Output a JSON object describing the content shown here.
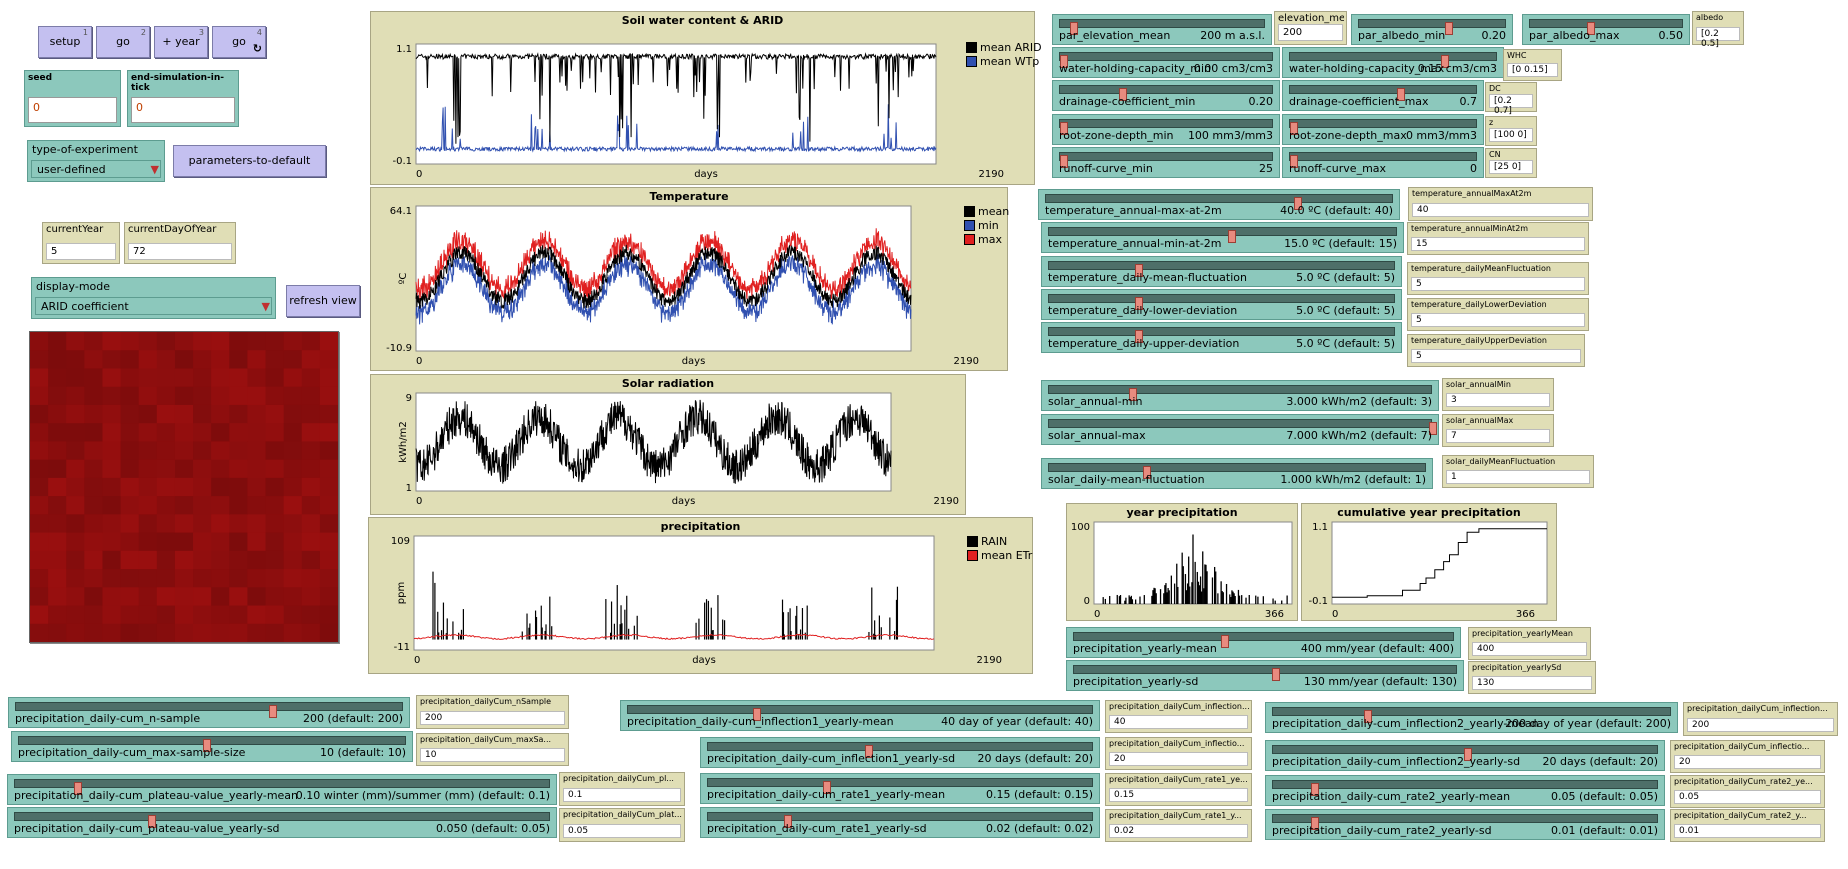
{
  "buttons": {
    "setup": {
      "label": "setup",
      "key": "1"
    },
    "go": {
      "label": "go",
      "key": "2"
    },
    "plus_year": {
      "label": "+ year",
      "key": "3"
    },
    "go_forever": {
      "label": "go",
      "key": "4"
    },
    "parameters_to_default": {
      "label": "parameters-to-default"
    },
    "refresh_view": {
      "label": "refresh view"
    }
  },
  "inputs": {
    "seed": {
      "label": "seed",
      "value": "0"
    },
    "end_tick": {
      "label": "end-simulation-in-tick",
      "value": "0"
    }
  },
  "choosers": {
    "experiment": {
      "label": "type-of-experiment",
      "value": "user-defined"
    },
    "display": {
      "label": "display-mode",
      "value": "ARID coefficient"
    }
  },
  "monitors": {
    "current_year": {
      "label": "currentYear",
      "value": "5"
    },
    "current_day": {
      "label": "currentDayOfYear",
      "value": "72"
    },
    "elevation_mean": {
      "label": "elevation_mean",
      "value": "200"
    },
    "albedo": {
      "label": "albedo",
      "value": "[0.2 0.5]"
    },
    "whc": {
      "label": "WHC",
      "value": "[0 0.15]"
    },
    "dc": {
      "label": "DC",
      "value": "[0.2 0.7]"
    },
    "z": {
      "label": "z",
      "value": "[100 0]"
    },
    "cn": {
      "label": "CN",
      "value": "[25 0]"
    },
    "t_max": {
      "label": "temperature_annualMaxAt2m",
      "value": "40"
    },
    "t_min": {
      "label": "temperature_annualMinAt2m",
      "value": "15"
    },
    "t_fluct": {
      "label": "temperature_dailyMeanFluctuation",
      "value": "5"
    },
    "t_lower": {
      "label": "temperature_dailyLowerDeviation",
      "value": "5"
    },
    "t_upper": {
      "label": "temperature_dailyUpperDeviation",
      "value": "5"
    },
    "s_min": {
      "label": "solar_annualMin",
      "value": "3"
    },
    "s_max": {
      "label": "solar_annualMax",
      "value": "7"
    },
    "s_fluct": {
      "label": "solar_dailyMeanFluctuation",
      "value": "1"
    },
    "p_mean": {
      "label": "precipitation_yearlyMean",
      "value": "400"
    },
    "p_sd": {
      "label": "precipitation_yearlySd",
      "value": "130"
    },
    "pc_nsample": {
      "label": "precipitation_dailyCum_nSample",
      "value": "200"
    },
    "pc_maxsample": {
      "label": "precipitation_dailyCum_maxSa...",
      "value": "10"
    },
    "pc_plat_mean": {
      "label": "precipitation_dailyCum_pl...",
      "value": "0.1"
    },
    "pc_plat_sd": {
      "label": "precipitation_dailyCum_plat...",
      "value": "0.05"
    },
    "pc_inf1_mean": {
      "label": "precipitation_dailyCum_inflection...",
      "value": "40"
    },
    "pc_inf1_sd": {
      "label": "precipitation_dailyCum_inflectio...",
      "value": "20"
    },
    "pc_rate1_mean": {
      "label": "precipitation_dailyCum_rate1_ye...",
      "value": "0.15"
    },
    "pc_rate1_sd": {
      "label": "precipitation_dailyCum_rate1_y...",
      "value": "0.02"
    },
    "pc_inf2_mean": {
      "label": "precipitation_dailyCum_inflection...",
      "value": "200"
    },
    "pc_inf2_sd": {
      "label": "precipitation_dailyCum_inflectio...",
      "value": "20"
    },
    "pc_rate2_mean": {
      "label": "precipitation_dailyCum_rate2_ye...",
      "value": "0.05"
    },
    "pc_rate2_sd": {
      "label": "precipitation_dailyCum_rate2_y...",
      "value": "0.01"
    }
  },
  "sliders": {
    "par_elevation_mean": {
      "name": "par_elevation_mean",
      "value": "200 m a.s.l.",
      "position": 0.05
    },
    "par_albedo_min": {
      "name": "par_albedo_min",
      "value": "0.20",
      "position": 0.6
    },
    "par_albedo_max": {
      "name": "par_albedo_max",
      "value": "0.50",
      "position": 0.38
    },
    "whc_min": {
      "name": "water-holding-capacity_min",
      "value": "0.00 cm3/cm3",
      "position": 0.0
    },
    "whc_max": {
      "name": "water-holding-capacity_max",
      "value": "0.15 cm3/cm3",
      "position": 0.74
    },
    "dc_min": {
      "name": "drainage-coefficient_min",
      "value": "0.20",
      "position": 0.28
    },
    "dc_max": {
      "name": "drainage-coefficient_max",
      "value": "0.7",
      "position": 0.58
    },
    "rzd_min": {
      "name": "root-zone-depth_min",
      "value": "100 mm3/mm3",
      "position": 0.0
    },
    "rzd_max": {
      "name": "root-zone-depth_max",
      "value": "0 mm3/mm3",
      "position": 0.0
    },
    "rc_min": {
      "name": "runoff-curve_min",
      "value": "25",
      "position": 0.0
    },
    "rc_max": {
      "name": "runoff-curve_max",
      "value": "0",
      "position": 0.0
    },
    "t_max": {
      "name": "temperature_annual-max-at-2m",
      "value": "40.0 ºC  (default: 40)",
      "position": 0.72
    },
    "t_min": {
      "name": "temperature_annual-min-at-2m",
      "value": "15.0 ºC  (default: 15)",
      "position": 0.52
    },
    "t_fluct": {
      "name": "temperature_daily-mean-fluctuation",
      "value": "5.0 ºC  (default: 5)",
      "position": 0.25
    },
    "t_lower": {
      "name": "temperature_daily-lower-deviation",
      "value": "5.0 ºC  (default: 5)",
      "position": 0.25
    },
    "t_upper": {
      "name": "temperature_daily-upper-deviation",
      "value": "5.0 ºC  (default: 5)",
      "position": 0.25
    },
    "s_min": {
      "name": "solar_annual-min",
      "value": "3.000 kWh/m2  (default: 3)",
      "position": 0.21
    },
    "s_max": {
      "name": "solar_annual-max",
      "value": "7.000 kWh/m2  (default: 7)",
      "position": 1.0
    },
    "s_fluct": {
      "name": "solar_daily-mean-fluctuation",
      "value": "1.000 kWh/m2  (default: 1)",
      "position": 0.25
    },
    "p_mean": {
      "name": "precipitation_yearly-mean",
      "value": "400 mm/year  (default: 400)",
      "position": 0.39
    },
    "p_sd": {
      "name": "precipitation_yearly-sd",
      "value": "130 mm/year  (default: 130)",
      "position": 0.52
    },
    "pc_nsample": {
      "name": "precipitation_daily-cum_n-sample",
      "value": "200  (default: 200)",
      "position": 0.66
    },
    "pc_maxsample": {
      "name": "precipitation_daily-cum_max-sample-size",
      "value": "10  (default: 10)",
      "position": 0.48
    },
    "pc_plat_mean": {
      "name": "precipitation_daily-cum_plateau-value_yearly-mean",
      "value": "0.10 winter (mm)/summer (mm)  (default: 0.1)",
      "position": 0.11
    },
    "pc_plat_sd": {
      "name": "precipitation_daily-cum_plateau-value_yearly-sd",
      "value": "0.050  (default: 0.05)",
      "position": 0.25
    },
    "pc_inf1_mean": {
      "name": "precipitation_daily-cum_inflection1_yearly-mean",
      "value": "40 day of year  (default: 40)",
      "position": 0.27
    },
    "pc_inf1_sd": {
      "name": "precipitation_daily-cum_inflection1_yearly-sd",
      "value": "20 days  (default: 20)",
      "position": 0.41
    },
    "pc_rate1_mean": {
      "name": "precipitation_daily-cum_rate1_yearly-mean",
      "value": "0.15  (default: 0.15)",
      "position": 0.3
    },
    "pc_rate1_sd": {
      "name": "precipitation_daily-cum_rate1_yearly-sd",
      "value": "0.02  (default: 0.02)",
      "position": 0.2
    },
    "pc_inf2_mean": {
      "name": "precipitation_daily-cum_inflection2_yearly-mean",
      "value": "200 day of year  (default: 200)",
      "position": 0.23
    },
    "pc_inf2_sd": {
      "name": "precipitation_daily-cum_inflection2_yearly-sd",
      "value": "20 days  (default: 20)",
      "position": 0.5
    },
    "pc_rate2_mean": {
      "name": "precipitation_daily-cum_rate2_yearly-mean",
      "value": "0.05  (default: 0.05)",
      "position": 0.1
    },
    "pc_rate2_sd": {
      "name": "precipitation_daily-cum_rate2_yearly-sd",
      "value": "0.01  (default: 0.01)",
      "position": 0.1
    }
  },
  "colors": {
    "button": "#c4c0f0",
    "widget": "#8cc8bc",
    "plot_bg": "#e0deb6",
    "view": "#8b1010",
    "black": "#000000",
    "blue": "#3050b0",
    "red": "#e02020"
  },
  "chart_data": [
    {
      "id": "soil",
      "type": "line",
      "title": "Soil water content & ARID",
      "xlabel": "days",
      "ylabel": "",
      "xlim": [
        0,
        2190
      ],
      "ylim": [
        -0.1,
        1.1
      ],
      "x_ticks": [
        "0",
        "2190"
      ],
      "y_ticks": [
        "1.1",
        "-0.1"
      ],
      "legend_position": "top-right",
      "series": [
        {
          "name": "mean ARID",
          "color": "#000000",
          "pattern": "seasonal high values near 1 with deep drops to about 0.1 during rainy days"
        },
        {
          "name": "mean WTp",
          "color": "#3050b0",
          "pattern": "low values near 0.05 with spikes up to about 0.6 on rain events"
        }
      ]
    },
    {
      "id": "temp",
      "type": "line",
      "title": "Temperature",
      "xlabel": "days",
      "ylabel": "ºC",
      "xlim": [
        0,
        2190
      ],
      "ylim": [
        -10.9,
        64.1
      ],
      "x_ticks": [
        "0",
        "2190"
      ],
      "y_ticks": [
        "64.1",
        "-10.9"
      ],
      "legend_position": "top-right",
      "series": [
        {
          "name": "mean",
          "color": "#000000",
          "annual_range": [
            15,
            40
          ]
        },
        {
          "name": "min",
          "color": "#3050b0",
          "annual_range": [
            10,
            35
          ]
        },
        {
          "name": "max",
          "color": "#e02020",
          "annual_range": [
            20,
            45
          ]
        }
      ]
    },
    {
      "id": "solar",
      "type": "line",
      "title": "Solar radiation",
      "xlabel": "days",
      "ylabel": "kWh/m2",
      "xlim": [
        0,
        2190
      ],
      "ylim": [
        1,
        9
      ],
      "x_ticks": [
        "0",
        "2190"
      ],
      "y_ticks": [
        "9",
        "1"
      ],
      "series": [
        {
          "name": "",
          "color": "#000000",
          "annual_range": [
            3,
            7
          ]
        }
      ]
    },
    {
      "id": "precip",
      "type": "bar",
      "title": "precipitation",
      "xlabel": "days",
      "ylabel": "ppm",
      "xlim": [
        0,
        2190
      ],
      "ylim": [
        -11,
        109
      ],
      "x_ticks": [
        "0",
        "2190"
      ],
      "y_ticks": [
        "109",
        "-11"
      ],
      "legend_position": "top-right",
      "series": [
        {
          "name": "RAIN",
          "color": "#000000"
        },
        {
          "name": "mean ETr",
          "color": "#e02020"
        }
      ]
    },
    {
      "id": "yearprec",
      "type": "bar",
      "title": "year precipitation",
      "xlabel": "",
      "ylabel": "",
      "xlim": [
        0,
        366
      ],
      "ylim": [
        0,
        100
      ],
      "x_ticks": [
        "0",
        "366"
      ],
      "y_ticks": [
        "100",
        "0"
      ]
    },
    {
      "id": "cumprec",
      "type": "line",
      "title": "cumulative year precipitation",
      "xlabel": "",
      "ylabel": "",
      "xlim": [
        0,
        366
      ],
      "ylim": [
        -0.1,
        1.1
      ],
      "x_ticks": [
        "0",
        "366"
      ],
      "y_ticks": [
        "1.1",
        "-0.1"
      ],
      "series": [
        {
          "name": "",
          "color": "#000000",
          "x": [
            0,
            60,
            120,
            150,
            160,
            175,
            190,
            200,
            215,
            230,
            250,
            270,
            366
          ],
          "y": [
            0,
            0.02,
            0.1,
            0.2,
            0.28,
            0.4,
            0.52,
            0.62,
            0.8,
            0.95,
            1.0,
            1.0,
            1.0
          ]
        }
      ]
    }
  ]
}
